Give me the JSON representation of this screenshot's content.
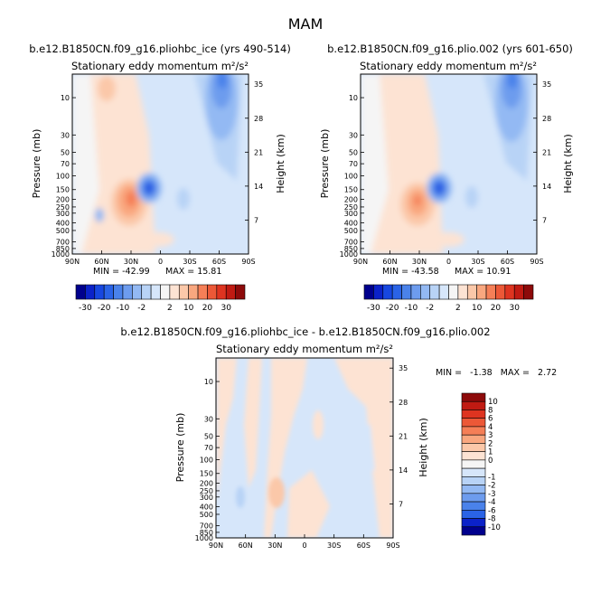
{
  "page": {
    "season": "MAM"
  },
  "colors": {
    "neg": [
      "#00008d",
      "#0b22c9",
      "#1747e0",
      "#2a63e6",
      "#4a82ea",
      "#6d9cee",
      "#93b9f3",
      "#b8d3f6",
      "#d6e6fa"
    ],
    "neutral": "#f5f5f5",
    "pos": [
      "#fde3d3",
      "#fbc8a9",
      "#f9a77f",
      "#f57f57",
      "#ec5837",
      "#de3420",
      "#c01a12",
      "#8d0a0a"
    ]
  },
  "chart_data": [
    {
      "id": "panel-left",
      "type": "heatmap",
      "title": "b.e12.B1850CN.f09_g16.pliohbc_ice (yrs 490-514)",
      "subtitle": "Stationary eddy momentum  m²/s²",
      "ylabel": "Pressure (mb)",
      "ylabel_right": "Height (km)",
      "xticks": [
        "90N",
        "60N",
        "30N",
        "0",
        "30S",
        "60S",
        "90S"
      ],
      "yticks": [
        "10",
        "30",
        "50",
        "70",
        "100",
        "150",
        "200",
        "250",
        "300",
        "400",
        "500",
        "700",
        "850",
        "1000"
      ],
      "yticks_right": [
        "35",
        "28",
        "21",
        "14",
        "7"
      ],
      "min_label": "MIN = -42.99",
      "max_label": "MAX = 15.81",
      "ylim_mb": [
        1000,
        5
      ],
      "xlim_lat": [
        90,
        -90
      ]
    },
    {
      "id": "panel-right",
      "type": "heatmap",
      "title": "b.e12.B1850CN.f09_g16.plio.002 (yrs 601-650)",
      "subtitle": "Stationary eddy momentum  m²/s²",
      "ylabel": "Pressure (mb)",
      "ylabel_right": "Height (km)",
      "xticks": [
        "90N",
        "60N",
        "30N",
        "0",
        "30S",
        "60S",
        "90S"
      ],
      "yticks": [
        "10",
        "30",
        "50",
        "70",
        "100",
        "150",
        "200",
        "250",
        "300",
        "400",
        "500",
        "700",
        "850",
        "1000"
      ],
      "yticks_right": [
        "35",
        "28",
        "21",
        "14",
        "7"
      ],
      "min_label": "MIN = -43.58",
      "max_label": "MAX = 10.91",
      "ylim_mb": [
        1000,
        5
      ],
      "xlim_lat": [
        90,
        -90
      ]
    },
    {
      "id": "panel-diff",
      "type": "heatmap",
      "title": "b.e12.B1850CN.f09_g16.pliohbc_ice - b.e12.B1850CN.f09_g16.plio.002",
      "subtitle": "Stationary eddy momentum  m²/s²",
      "ylabel": "Pressure (mb)",
      "ylabel_right": "Height (km)",
      "xticks": [
        "90N",
        "60N",
        "30N",
        "0",
        "30S",
        "60S",
        "90S"
      ],
      "yticks": [
        "10",
        "30",
        "50",
        "70",
        "100",
        "150",
        "200",
        "250",
        "300",
        "400",
        "500",
        "700",
        "850",
        "1000"
      ],
      "yticks_right": [
        "35",
        "28",
        "21",
        "14",
        "7"
      ],
      "minmax_label": "MIN =   -1.38   MAX =   2.72",
      "ylim_mb": [
        1000,
        5
      ],
      "xlim_lat": [
        90,
        -90
      ]
    }
  ],
  "colorbar_top": {
    "labels": [
      "-30",
      "-20",
      "-10",
      "-2",
      "2",
      "10",
      "20",
      "30"
    ],
    "levels": [
      -40,
      -30,
      -25,
      -20,
      -15,
      -10,
      -5,
      -2,
      -1,
      1,
      2,
      5,
      10,
      15,
      20,
      30,
      40
    ]
  },
  "colorbar_diff": {
    "labels": [
      "10",
      "8",
      "6",
      "4",
      "3",
      "2",
      "1",
      "0",
      "-1",
      "-2",
      "-3",
      "-4",
      "-6",
      "-8",
      "-10"
    ]
  },
  "icons": {
    "page": "none"
  }
}
